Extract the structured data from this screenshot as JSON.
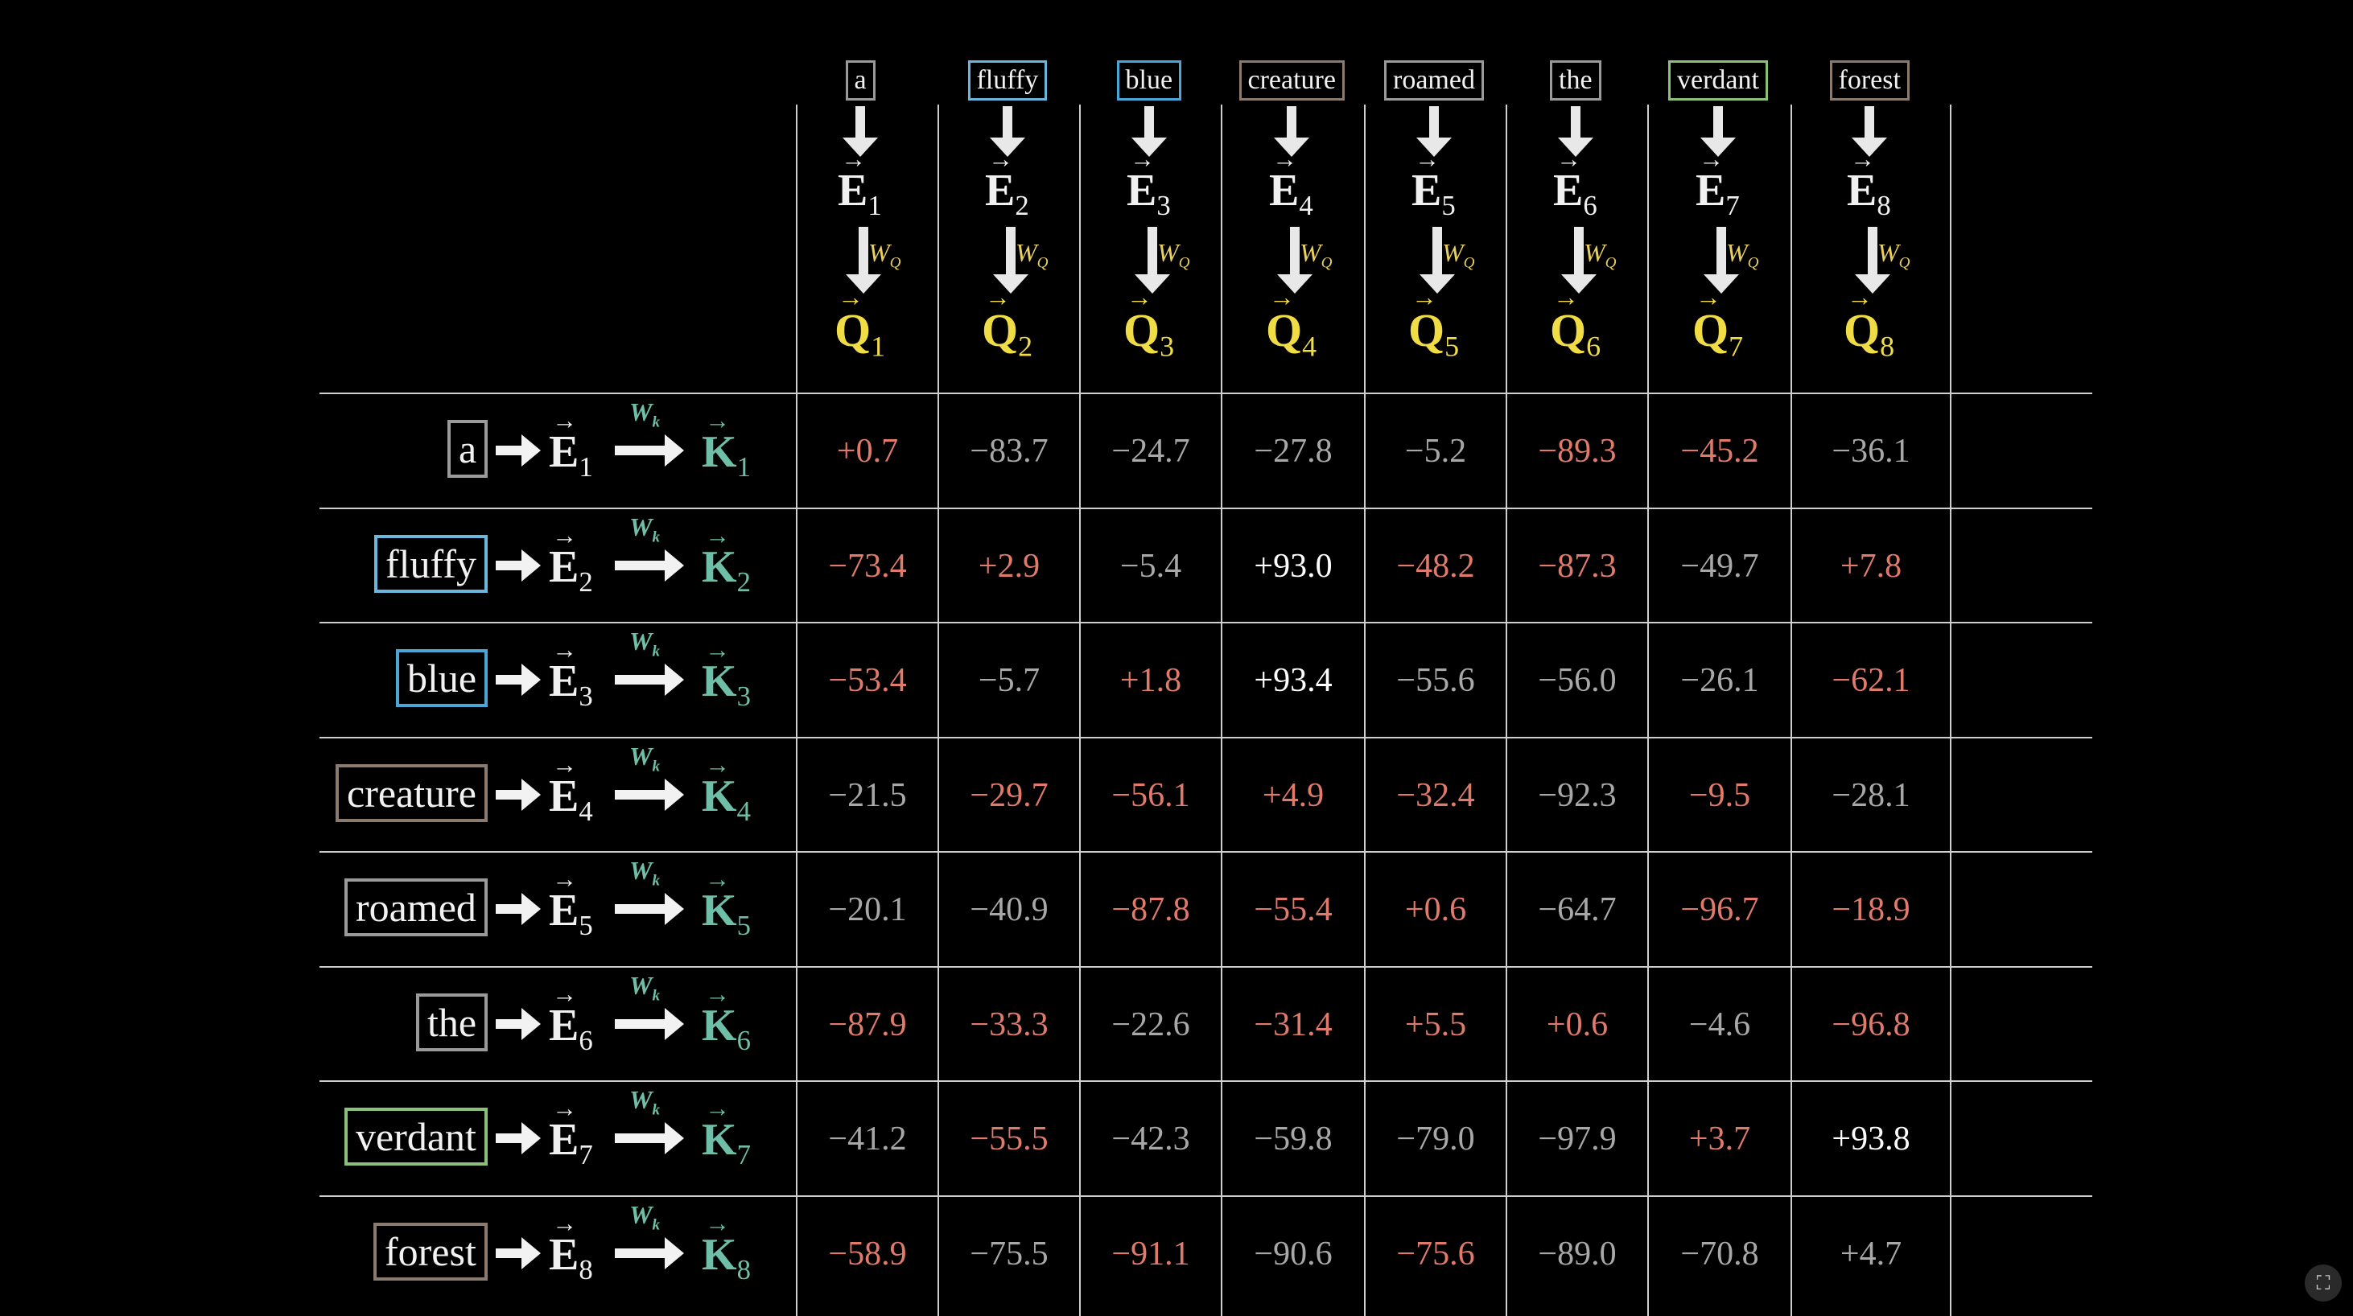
{
  "tokens": [
    {
      "word": "a",
      "color": "#9a9a9a"
    },
    {
      "word": "fluffy",
      "color": "#6bb6dc"
    },
    {
      "word": "blue",
      "color": "#4aa6d6"
    },
    {
      "word": "creature",
      "color": "#8a7b6e"
    },
    {
      "word": "roamed",
      "color": "#9a9a9a"
    },
    {
      "word": "the",
      "color": "#9a9a9a"
    },
    {
      "word": "verdant",
      "color": "#8cc07a"
    },
    {
      "word": "forest",
      "color": "#8a7b6e"
    }
  ],
  "embedding_letter": "E",
  "query_letter": "Q",
  "key_letter": "K",
  "query_weight": {
    "base": "W",
    "sub": "Q"
  },
  "key_weight": {
    "base": "W",
    "sub": "k"
  },
  "indices": [
    "1",
    "2",
    "3",
    "4",
    "5",
    "6",
    "7",
    "8"
  ],
  "colors": {
    "query": "#f0dc44",
    "key": "#6fbfa8",
    "weight_q": "#e8d060",
    "negative": "#e07a6a",
    "neutral": "#a8a8a8",
    "positive": "#ffffff",
    "grid": "#cfcfcf"
  },
  "chart_data": {
    "type": "table",
    "rows": [
      "a",
      "fluffy",
      "blue",
      "creature",
      "roamed",
      "the",
      "verdant",
      "forest"
    ],
    "columns": [
      "a",
      "fluffy",
      "blue",
      "creature",
      "roamed",
      "the",
      "verdant",
      "forest"
    ],
    "cells": [
      [
        "+0.7",
        "−83.7",
        "−24.7",
        "−27.8",
        "−5.2",
        "−89.3",
        "−45.2",
        "−36.1"
      ],
      [
        "−73.4",
        "+2.9",
        "−5.4",
        "+93.0",
        "−48.2",
        "−87.3",
        "−49.7",
        "+7.8"
      ],
      [
        "−53.4",
        "−5.7",
        "+1.8",
        "+93.4",
        "−55.6",
        "−56.0",
        "−26.1",
        "−62.1"
      ],
      [
        "−21.5",
        "−29.7",
        "−56.1",
        "+4.9",
        "−32.4",
        "−92.3",
        "−9.5",
        "−28.1"
      ],
      [
        "−20.1",
        "−40.9",
        "−87.8",
        "−55.4",
        "+0.6",
        "−64.7",
        "−96.7",
        "−18.9"
      ],
      [
        "−87.9",
        "−33.3",
        "−22.6",
        "−31.4",
        "+5.5",
        "+0.6",
        "−4.6",
        "−96.8"
      ],
      [
        "−41.2",
        "−55.5",
        "−42.3",
        "−59.8",
        "−79.0",
        "−97.9",
        "+3.7",
        "+93.8"
      ],
      [
        "−58.9",
        "−75.5",
        "−91.1",
        "−90.6",
        "−75.6",
        "−89.0",
        "−70.8",
        "+4.7"
      ]
    ],
    "tone": [
      [
        "neg",
        "neu",
        "neu",
        "neu",
        "neu",
        "neg",
        "neg",
        "neu"
      ],
      [
        "neg",
        "neg",
        "neu",
        "pos",
        "neg",
        "neg",
        "neu",
        "neg"
      ],
      [
        "neg",
        "neu",
        "neg",
        "pos",
        "neu",
        "neu",
        "neu",
        "neg"
      ],
      [
        "neu",
        "neg",
        "neg",
        "neg",
        "neg",
        "neu",
        "neg",
        "neu"
      ],
      [
        "neu",
        "neu",
        "neg",
        "neg",
        "neg",
        "neu",
        "neg",
        "neg"
      ],
      [
        "neg",
        "neg",
        "neu",
        "neg",
        "neg",
        "neg",
        "neu",
        "neg"
      ],
      [
        "neu",
        "neg",
        "neu",
        "neu",
        "neu",
        "neu",
        "neg",
        "pos"
      ],
      [
        "neg",
        "neu",
        "neg",
        "neu",
        "neg",
        "neu",
        "neu",
        "neu"
      ]
    ]
  }
}
